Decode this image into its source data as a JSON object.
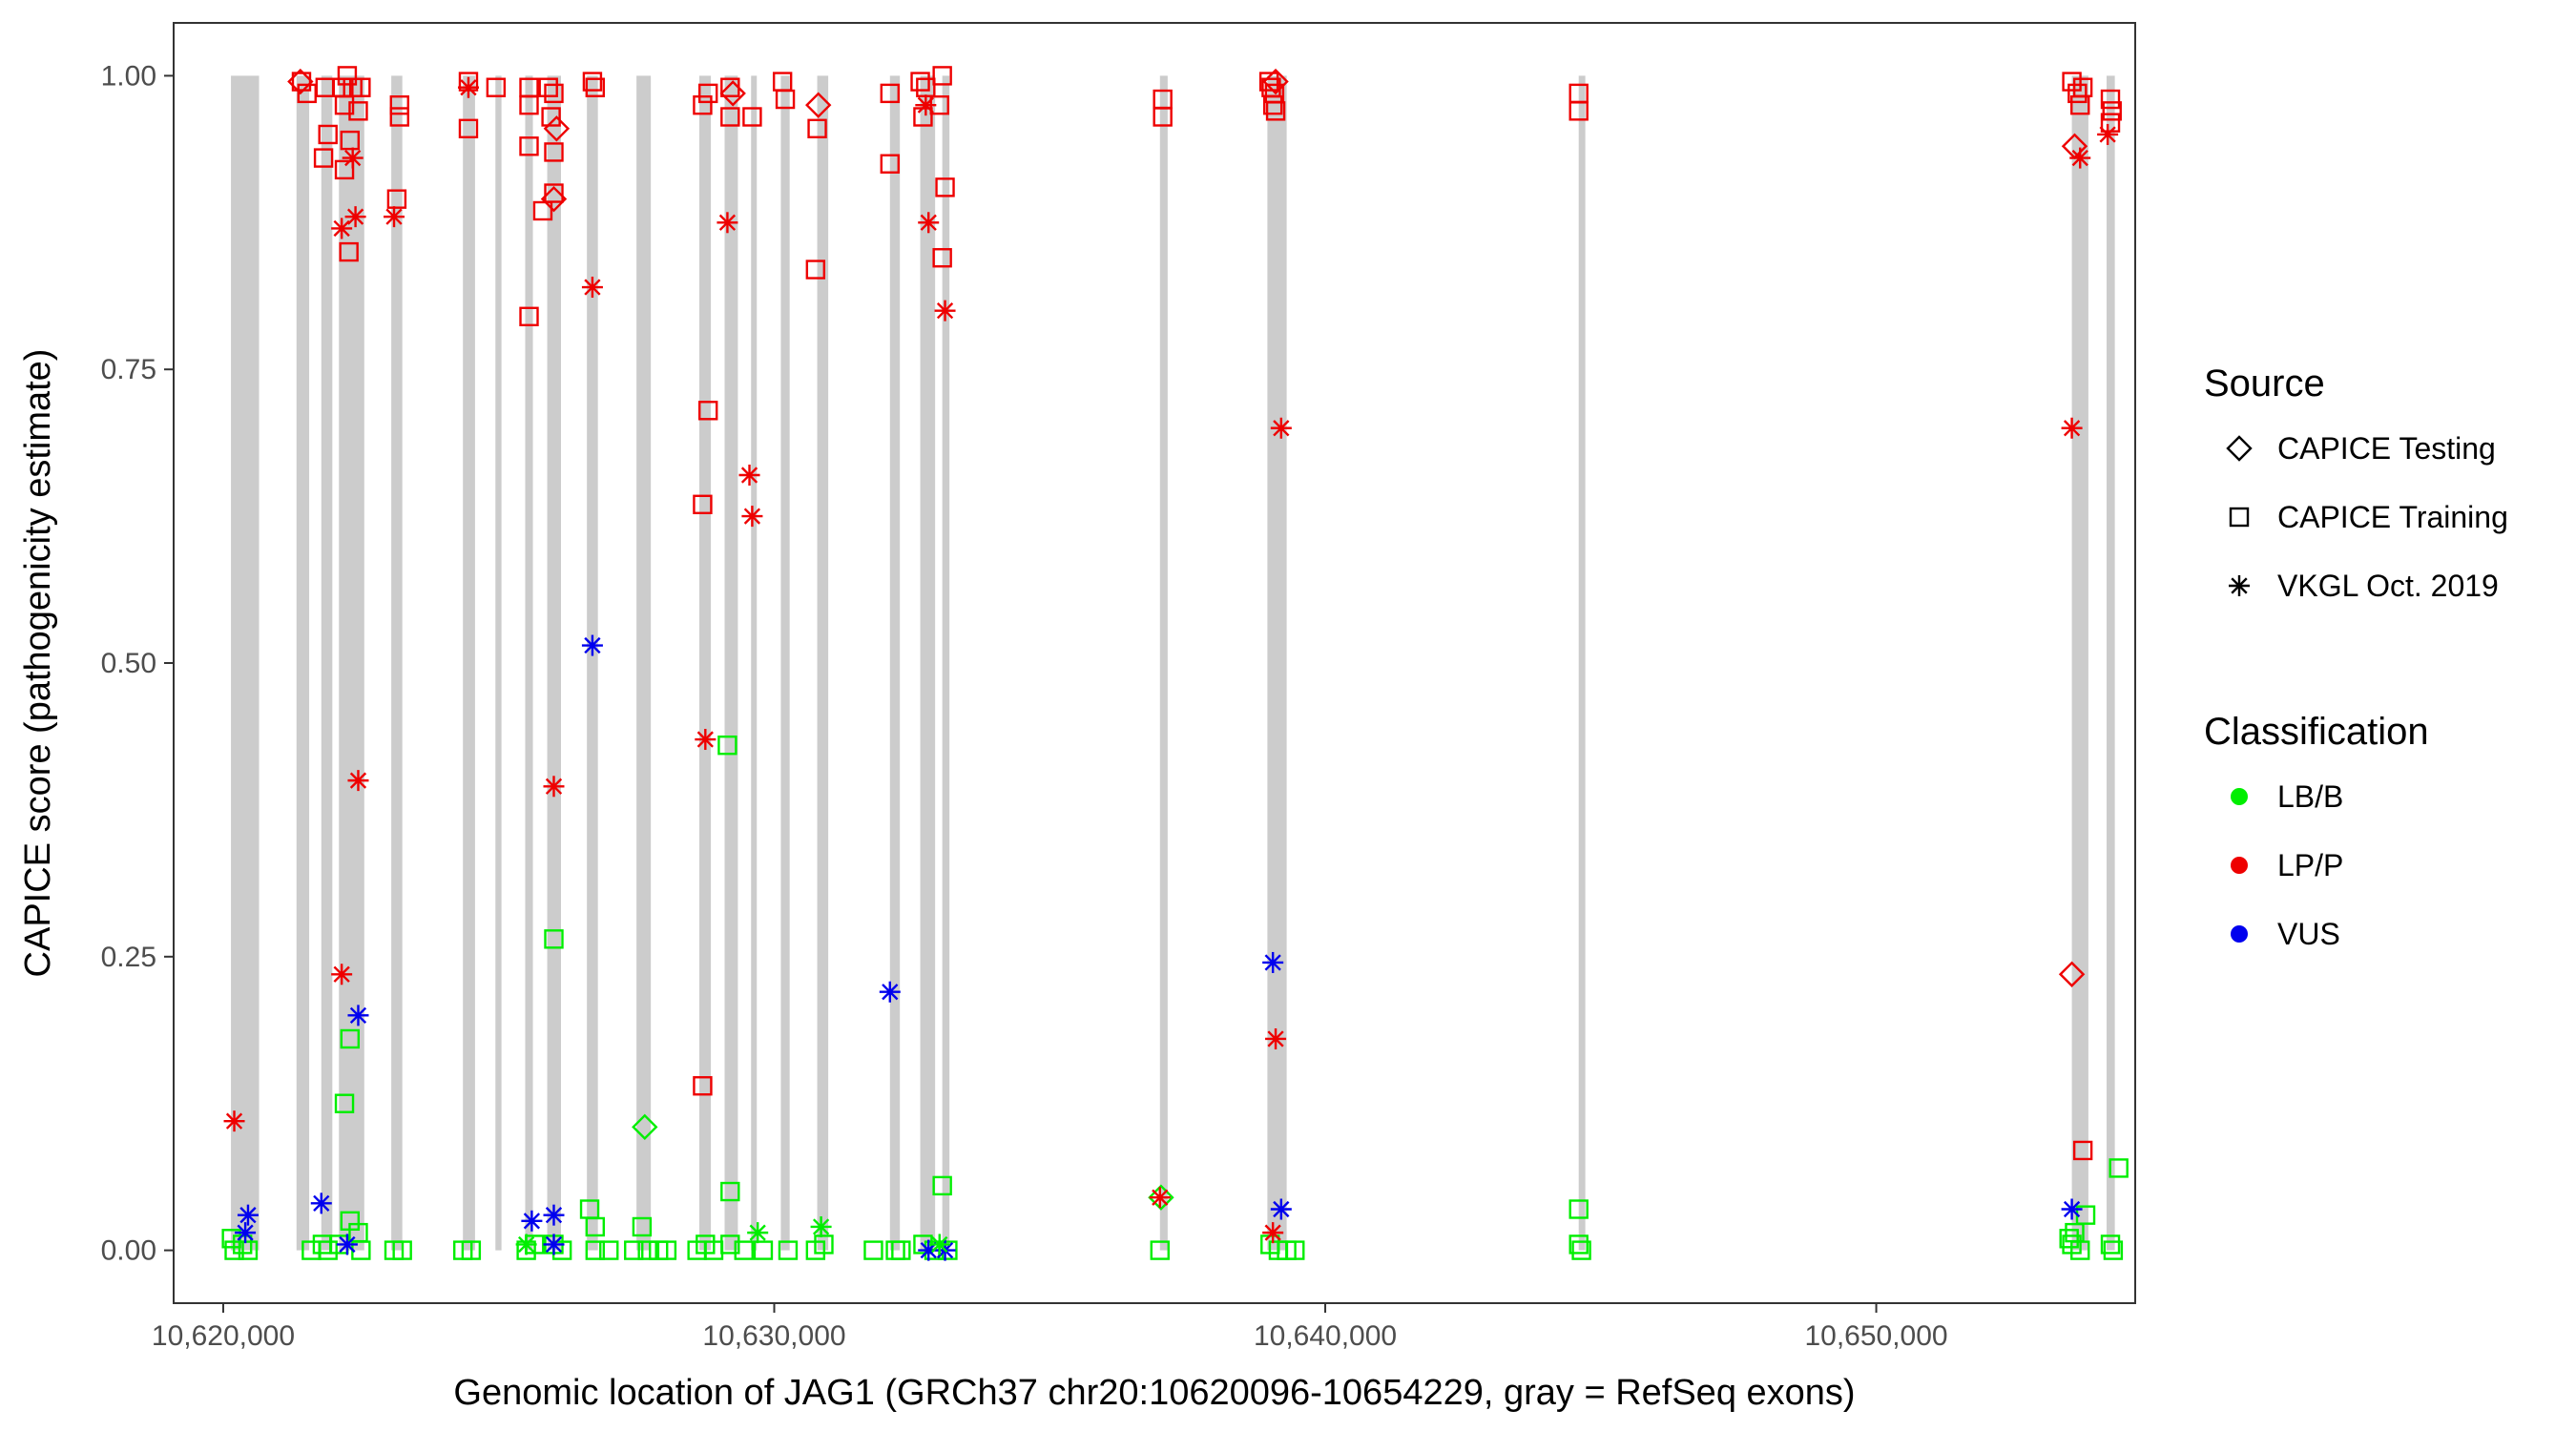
{
  "chart_data": {
    "type": "scatter",
    "xlabel": "Genomic location of JAG1 (GRCh37 chr20:10620096-10654229, gray = RefSeq exons)",
    "ylabel": "CAPICE score (pathogenicity estimate)",
    "xlim": [
      10619100,
      10654700
    ],
    "ylim": [
      -0.045,
      1.045
    ],
    "x_ticks": [
      10620000,
      10630000,
      10640000,
      10650000
    ],
    "x_tick_labels": [
      "10,620,000",
      "10,630,000",
      "10,640,000",
      "10,650,000"
    ],
    "y_ticks": [
      0.0,
      0.25,
      0.5,
      0.75,
      1.0
    ],
    "y_tick_labels": [
      "0.00",
      "0.25",
      "0.50",
      "0.75",
      "1.00"
    ],
    "grid": false,
    "exon_color": "#cccccc",
    "exons": [
      [
        10620140,
        10620650
      ],
      [
        10621330,
        10621560
      ],
      [
        10621780,
        10621980
      ],
      [
        10622100,
        10622560
      ],
      [
        10623050,
        10623250
      ],
      [
        10624350,
        10624570
      ],
      [
        10624940,
        10625050
      ],
      [
        10625480,
        10625620
      ],
      [
        10625880,
        10626130
      ],
      [
        10626600,
        10626800
      ],
      [
        10627500,
        10627760
      ],
      [
        10628640,
        10628850
      ],
      [
        10629100,
        10629340
      ],
      [
        10629580,
        10629660
      ],
      [
        10630120,
        10630280
      ],
      [
        10630780,
        10630980
      ],
      [
        10632100,
        10632280
      ],
      [
        10632650,
        10632920
      ],
      [
        10633050,
        10633180
      ],
      [
        10637000,
        10637140
      ],
      [
        10638950,
        10639300
      ],
      [
        10644600,
        10644720
      ],
      [
        10653550,
        10653850
      ],
      [
        10654180,
        10654330
      ]
    ],
    "legend": {
      "position": "right",
      "source_title": "Source",
      "source_items": [
        {
          "label": "CAPICE Testing",
          "shape": "diamond"
        },
        {
          "label": "CAPICE Training",
          "shape": "square"
        },
        {
          "label": "VKGL Oct. 2019",
          "shape": "asterisk"
        }
      ],
      "class_title": "Classification",
      "class_items": [
        {
          "label": "LB/B",
          "color": "#00ee00"
        },
        {
          "label": "LP/P",
          "color": "#ee0000"
        },
        {
          "label": "VUS",
          "color": "#0000ee"
        }
      ]
    },
    "series": [
      {
        "name": "CAPICE Training",
        "shape": "square",
        "points": [
          [
            10621420,
            0.995,
            "LP/P"
          ],
          [
            10621520,
            0.985,
            "LP/P"
          ],
          [
            10621850,
            0.99,
            "LP/P"
          ],
          [
            10621900,
            0.95,
            "LP/P"
          ],
          [
            10621820,
            0.93,
            "LP/P"
          ],
          [
            10622150,
            0.99,
            "LP/P"
          ],
          [
            10622250,
            1.0,
            "LP/P"
          ],
          [
            10622200,
            0.975,
            "LP/P"
          ],
          [
            10622300,
            0.945,
            "LP/P"
          ],
          [
            10622350,
            0.99,
            "LP/P"
          ],
          [
            10622450,
            0.97,
            "LP/P"
          ],
          [
            10622500,
            0.99,
            "LP/P"
          ],
          [
            10622200,
            0.92,
            "LP/P"
          ],
          [
            10622280,
            0.85,
            "LP/P"
          ],
          [
            10623150,
            0.895,
            "LP/P"
          ],
          [
            10623200,
            0.975,
            "LP/P"
          ],
          [
            10623200,
            0.965,
            "LP/P"
          ],
          [
            10624450,
            0.995,
            "LP/P"
          ],
          [
            10624450,
            0.955,
            "LP/P"
          ],
          [
            10624950,
            0.99,
            "LP/P"
          ],
          [
            10625550,
            0.99,
            "LP/P"
          ],
          [
            10625550,
            0.975,
            "LP/P"
          ],
          [
            10625550,
            0.94,
            "LP/P"
          ],
          [
            10625900,
            0.99,
            "LP/P"
          ],
          [
            10626000,
            0.985,
            "LP/P"
          ],
          [
            10625950,
            0.965,
            "LP/P"
          ],
          [
            10626000,
            0.935,
            "LP/P"
          ],
          [
            10625800,
            0.885,
            "LP/P"
          ],
          [
            10626000,
            0.9,
            "LP/P"
          ],
          [
            10625550,
            0.795,
            "LP/P"
          ],
          [
            10626700,
            0.995,
            "LP/P"
          ],
          [
            10626750,
            0.99,
            "LP/P"
          ],
          [
            10628700,
            0.975,
            "LP/P"
          ],
          [
            10628800,
            0.985,
            "LP/P"
          ],
          [
            10628800,
            0.715,
            "LP/P"
          ],
          [
            10628700,
            0.635,
            "LP/P"
          ],
          [
            10628700,
            0.14,
            "LP/P"
          ],
          [
            10629200,
            0.99,
            "LP/P"
          ],
          [
            10629200,
            0.965,
            "LP/P"
          ],
          [
            10629600,
            0.965,
            "LP/P"
          ],
          [
            10630150,
            0.995,
            "LP/P"
          ],
          [
            10630200,
            0.98,
            "LP/P"
          ],
          [
            10630780,
            0.955,
            "LP/P"
          ],
          [
            10630750,
            0.835,
            "LP/P"
          ],
          [
            10632100,
            0.985,
            "LP/P"
          ],
          [
            10632100,
            0.925,
            "LP/P"
          ],
          [
            10632650,
            0.995,
            "LP/P"
          ],
          [
            10632750,
            0.99,
            "LP/P"
          ],
          [
            10632700,
            0.965,
            "LP/P"
          ],
          [
            10633050,
            1.0,
            "LP/P"
          ],
          [
            10633000,
            0.975,
            "LP/P"
          ],
          [
            10633100,
            0.905,
            "LP/P"
          ],
          [
            10633050,
            0.845,
            "LP/P"
          ],
          [
            10637050,
            0.98,
            "LP/P"
          ],
          [
            10637050,
            0.965,
            "LP/P"
          ],
          [
            10638980,
            0.995,
            "LP/P"
          ],
          [
            10639020,
            0.99,
            "LP/P"
          ],
          [
            10639050,
            0.975,
            "LP/P"
          ],
          [
            10639100,
            0.97,
            "LP/P"
          ],
          [
            10639080,
            0.985,
            "LP/P"
          ],
          [
            10644600,
            0.985,
            "LP/P"
          ],
          [
            10644600,
            0.97,
            "LP/P"
          ],
          [
            10653550,
            0.995,
            "LP/P"
          ],
          [
            10653650,
            0.985,
            "LP/P"
          ],
          [
            10653750,
            0.99,
            "LP/P"
          ],
          [
            10653700,
            0.975,
            "LP/P"
          ],
          [
            10654250,
            0.98,
            "LP/P"
          ],
          [
            10654280,
            0.97,
            "LP/P"
          ],
          [
            10654250,
            0.96,
            "LP/P"
          ],
          [
            10653750,
            0.085,
            "LP/P"
          ],
          [
            10620150,
            0.01,
            "LB/B"
          ],
          [
            10620200,
            0.0,
            "LB/B"
          ],
          [
            10620350,
            0.005,
            "LB/B"
          ],
          [
            10620450,
            0.0,
            "LB/B"
          ],
          [
            10621600,
            0.0,
            "LB/B"
          ],
          [
            10621800,
            0.005,
            "LB/B"
          ],
          [
            10621900,
            0.0,
            "LB/B"
          ],
          [
            10622100,
            0.005,
            "LB/B"
          ],
          [
            10622200,
            0.125,
            "LB/B"
          ],
          [
            10622300,
            0.18,
            "LB/B"
          ],
          [
            10622300,
            0.025,
            "LB/B"
          ],
          [
            10622450,
            0.015,
            "LB/B"
          ],
          [
            10622500,
            0.0,
            "LB/B"
          ],
          [
            10623100,
            0.0,
            "LB/B"
          ],
          [
            10623250,
            0.0,
            "LB/B"
          ],
          [
            10624350,
            0.0,
            "LB/B"
          ],
          [
            10624500,
            0.0,
            "LB/B"
          ],
          [
            10625500,
            0.0,
            "LB/B"
          ],
          [
            10625650,
            0.005,
            "LB/B"
          ],
          [
            10626000,
            0.265,
            "LB/B"
          ],
          [
            10626000,
            0.005,
            "LB/B"
          ],
          [
            10626150,
            0.0,
            "LB/B"
          ],
          [
            10626650,
            0.035,
            "LB/B"
          ],
          [
            10626750,
            0.02,
            "LB/B"
          ],
          [
            10626750,
            0.0,
            "LB/B"
          ],
          [
            10627000,
            0.0,
            "LB/B"
          ],
          [
            10627450,
            0.0,
            "LB/B"
          ],
          [
            10627600,
            0.02,
            "LB/B"
          ],
          [
            10627700,
            0.0,
            "LB/B"
          ],
          [
            10627900,
            0.0,
            "LB/B"
          ],
          [
            10628050,
            0.0,
            "LB/B"
          ],
          [
            10628600,
            0.0,
            "LB/B"
          ],
          [
            10628750,
            0.005,
            "LB/B"
          ],
          [
            10628900,
            0.0,
            "LB/B"
          ],
          [
            10629150,
            0.43,
            "LB/B"
          ],
          [
            10629200,
            0.05,
            "LB/B"
          ],
          [
            10629200,
            0.005,
            "LB/B"
          ],
          [
            10629450,
            0.0,
            "LB/B"
          ],
          [
            10629800,
            0.0,
            "LB/B"
          ],
          [
            10630250,
            0.0,
            "LB/B"
          ],
          [
            10630750,
            0.0,
            "LB/B"
          ],
          [
            10630900,
            0.005,
            "LB/B"
          ],
          [
            10631800,
            0.0,
            "LB/B"
          ],
          [
            10632200,
            0.0,
            "LB/B"
          ],
          [
            10632300,
            0.0,
            "LB/B"
          ],
          [
            10632700,
            0.005,
            "LB/B"
          ],
          [
            10632900,
            0.0,
            "LB/B"
          ],
          [
            10633050,
            0.055,
            "LB/B"
          ],
          [
            10633150,
            0.0,
            "LB/B"
          ],
          [
            10637000,
            0.0,
            "LB/B"
          ],
          [
            10639000,
            0.005,
            "LB/B"
          ],
          [
            10639150,
            0.0,
            "LB/B"
          ],
          [
            10639300,
            0.0,
            "LB/B"
          ],
          [
            10639450,
            0.0,
            "LB/B"
          ],
          [
            10644600,
            0.035,
            "LB/B"
          ],
          [
            10644600,
            0.005,
            "LB/B"
          ],
          [
            10644650,
            0.0,
            "LB/B"
          ],
          [
            10653500,
            0.01,
            "LB/B"
          ],
          [
            10653550,
            0.005,
            "LB/B"
          ],
          [
            10653600,
            0.015,
            "LB/B"
          ],
          [
            10653700,
            0.0,
            "LB/B"
          ],
          [
            10653800,
            0.03,
            "LB/B"
          ],
          [
            10654250,
            0.005,
            "LB/B"
          ],
          [
            10654300,
            0.0,
            "LB/B"
          ],
          [
            10654400,
            0.07,
            "LB/B"
          ]
        ]
      },
      {
        "name": "CAPICE Testing",
        "shape": "diamond",
        "points": [
          [
            10621400,
            0.995,
            "LP/P"
          ],
          [
            10626050,
            0.955,
            "LP/P"
          ],
          [
            10626000,
            0.895,
            "LP/P"
          ],
          [
            10629250,
            0.985,
            "LP/P"
          ],
          [
            10630800,
            0.975,
            "LP/P"
          ],
          [
            10639100,
            0.995,
            "LP/P"
          ],
          [
            10653600,
            0.94,
            "LP/P"
          ],
          [
            10653550,
            0.235,
            "LP/P"
          ],
          [
            10627650,
            0.105,
            "LB/B"
          ],
          [
            10637020,
            0.045,
            "LB/B"
          ]
        ]
      },
      {
        "name": "VKGL Oct. 2019",
        "shape": "asterisk",
        "points": [
          [
            10620200,
            0.11,
            "LP/P"
          ],
          [
            10622150,
            0.87,
            "LP/P"
          ],
          [
            10622350,
            0.93,
            "LP/P"
          ],
          [
            10622400,
            0.88,
            "LP/P"
          ],
          [
            10622450,
            0.4,
            "LP/P"
          ],
          [
            10622150,
            0.235,
            "LP/P"
          ],
          [
            10623100,
            0.88,
            "LP/P"
          ],
          [
            10624450,
            0.99,
            "LP/P"
          ],
          [
            10626000,
            0.395,
            "LP/P"
          ],
          [
            10626700,
            0.82,
            "LP/P"
          ],
          [
            10628750,
            0.435,
            "LP/P"
          ],
          [
            10629150,
            0.875,
            "LP/P"
          ],
          [
            10629550,
            0.66,
            "LP/P"
          ],
          [
            10629600,
            0.625,
            "LP/P"
          ],
          [
            10632800,
            0.875,
            "LP/P"
          ],
          [
            10632750,
            0.975,
            "LP/P"
          ],
          [
            10633100,
            0.8,
            "LP/P"
          ],
          [
            10637000,
            0.045,
            "LP/P"
          ],
          [
            10639100,
            0.18,
            "LP/P"
          ],
          [
            10639200,
            0.7,
            "LP/P"
          ],
          [
            10639050,
            0.015,
            "LP/P"
          ],
          [
            10653550,
            0.7,
            "LP/P"
          ],
          [
            10653700,
            0.93,
            "LP/P"
          ],
          [
            10654200,
            0.95,
            "LP/P"
          ],
          [
            10620400,
            0.015,
            "VUS"
          ],
          [
            10620450,
            0.03,
            "VUS"
          ],
          [
            10621780,
            0.04,
            "VUS"
          ],
          [
            10622250,
            0.005,
            "VUS"
          ],
          [
            10622450,
            0.2,
            "VUS"
          ],
          [
            10625600,
            0.025,
            "VUS"
          ],
          [
            10626000,
            0.03,
            "VUS"
          ],
          [
            10626000,
            0.005,
            "VUS"
          ],
          [
            10626700,
            0.515,
            "VUS"
          ],
          [
            10632100,
            0.22,
            "VUS"
          ],
          [
            10632800,
            0.0,
            "VUS"
          ],
          [
            10633100,
            0.0,
            "VUS"
          ],
          [
            10639050,
            0.245,
            "VUS"
          ],
          [
            10639200,
            0.035,
            "VUS"
          ],
          [
            10653550,
            0.035,
            "VUS"
          ],
          [
            10625500,
            0.005,
            "LB/B"
          ],
          [
            10629700,
            0.015,
            "LB/B"
          ],
          [
            10630850,
            0.02,
            "LB/B"
          ],
          [
            10633000,
            0.005,
            "LB/B"
          ]
        ]
      }
    ]
  }
}
